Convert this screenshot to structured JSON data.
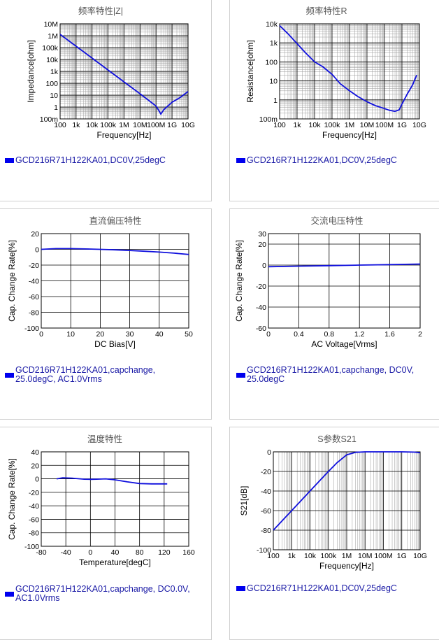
{
  "charts": [
    {
      "type": "line",
      "title": "频率特性|Z|",
      "xscale": "log",
      "yscale": "log",
      "xlim": [
        100,
        10000000000
      ],
      "ylim": [
        0.1,
        10000000
      ],
      "xlabel": "Frequency[Hz]",
      "ylabel": "Impedance[ohm]",
      "xticks": [
        {
          "v": 100,
          "t": "100"
        },
        {
          "v": 1000,
          "t": "1k"
        },
        {
          "v": 10000,
          "t": "10k"
        },
        {
          "v": 100000,
          "t": "100k"
        },
        {
          "v": 1000000,
          "t": "1M"
        },
        {
          "v": 10000000,
          "t": "10M"
        },
        {
          "v": 100000000,
          "t": "100M"
        },
        {
          "v": 1000000000,
          "t": "1G"
        },
        {
          "v": 10000000000,
          "t": "10G"
        }
      ],
      "yticks": [
        {
          "v": 0.1,
          "t": "100m"
        },
        {
          "v": 1,
          "t": "1"
        },
        {
          "v": 10,
          "t": "10"
        },
        {
          "v": 100,
          "t": "100"
        },
        {
          "v": 1000,
          "t": "1k"
        },
        {
          "v": 10000,
          "t": "10k"
        },
        {
          "v": 100000,
          "t": "100k"
        },
        {
          "v": 1000000,
          "t": "1M"
        },
        {
          "v": 10000000,
          "t": "10M"
        }
      ],
      "legend": "GCD216R71H122KA01,DC0V,25degC",
      "series": [
        {
          "x": [
            100,
            1000,
            10000,
            100000,
            1000000,
            10000000,
            30000000,
            100000000,
            150000000,
            200000000,
            300000000,
            1000000000,
            3000000000,
            10000000000
          ],
          "y": [
            1300000,
            130000,
            13000,
            1300,
            130,
            13,
            4.2,
            1.2,
            0.5,
            0.25,
            0.6,
            2.5,
            6,
            20
          ]
        }
      ]
    },
    {
      "type": "line",
      "title": "频率特性R",
      "xscale": "log",
      "yscale": "log",
      "xlim": [
        100,
        10000000000
      ],
      "ylim": [
        0.1,
        10000
      ],
      "xlabel": "Frequency[Hz]",
      "ylabel": "Resistance[ohm]",
      "xticks": [
        {
          "v": 100,
          "t": "100"
        },
        {
          "v": 1000,
          "t": "1k"
        },
        {
          "v": 10000,
          "t": "10k"
        },
        {
          "v": 100000,
          "t": "100k"
        },
        {
          "v": 1000000,
          "t": "1M"
        },
        {
          "v": 10000000,
          "t": "10M"
        },
        {
          "v": 100000000,
          "t": "100M"
        },
        {
          "v": 1000000000,
          "t": "1G"
        },
        {
          "v": 10000000000,
          "t": "10G"
        }
      ],
      "yticks": [
        {
          "v": 0.1,
          "t": "100m"
        },
        {
          "v": 1,
          "t": "1"
        },
        {
          "v": 10,
          "t": "10"
        },
        {
          "v": 100,
          "t": "100"
        },
        {
          "v": 1000,
          "t": "1k"
        },
        {
          "v": 10000,
          "t": "10k"
        }
      ],
      "legend": "GCD216R71H122KA01,DC0V,25degC",
      "series": [
        {
          "x": [
            100,
            300,
            1000,
            3000,
            10000,
            30000,
            100000,
            300000,
            1000000,
            3000000,
            10000000,
            30000000,
            100000000,
            200000000,
            400000000,
            700000000,
            1000000000,
            2000000000,
            4000000000,
            7000000000
          ],
          "y": [
            8000,
            3000,
            900,
            300,
            100,
            55,
            22,
            7,
            3,
            1.5,
            0.8,
            0.5,
            0.35,
            0.28,
            0.25,
            0.3,
            0.6,
            2,
            6,
            20
          ]
        }
      ]
    },
    {
      "type": "line",
      "title": "直流偏压特性",
      "xscale": "linear",
      "yscale": "linear",
      "xlim": [
        0,
        50
      ],
      "ylim": [
        -100,
        20
      ],
      "xlabel": "DC Bias[V]",
      "ylabel": "Cap. Change Rate[%]",
      "xticks": [
        {
          "v": 0,
          "t": "0"
        },
        {
          "v": 10,
          "t": "10"
        },
        {
          "v": 20,
          "t": "20"
        },
        {
          "v": 30,
          "t": "30"
        },
        {
          "v": 40,
          "t": "40"
        },
        {
          "v": 50,
          "t": "50"
        }
      ],
      "yticks": [
        {
          "v": 20,
          "t": "20"
        },
        {
          "v": 0,
          "t": "0"
        },
        {
          "v": -20,
          "t": "-20"
        },
        {
          "v": -40,
          "t": "-40"
        },
        {
          "v": -60,
          "t": "-60"
        },
        {
          "v": -80,
          "t": "-80"
        },
        {
          "v": -100,
          "t": "-100"
        }
      ],
      "legend": "GCD216R71H122KA01,capchange, 25.0degC, AC1.0Vrms",
      "series": [
        {
          "x": [
            0,
            5,
            10,
            15,
            20,
            25,
            30,
            35,
            40,
            45,
            50
          ],
          "y": [
            0,
            1,
            1,
            0.5,
            0,
            -0.6,
            -1.4,
            -2.4,
            -3.5,
            -4.8,
            -6.5
          ]
        }
      ]
    },
    {
      "type": "line",
      "title": "交流电压特性",
      "xscale": "linear",
      "yscale": "linear",
      "xlim": [
        0,
        2
      ],
      "ylim": [
        -60,
        30
      ],
      "xlabel": "AC Voltage[Vrms]",
      "ylabel": "Cap. Change Rate[%]",
      "xticks": [
        {
          "v": 0,
          "t": "0"
        },
        {
          "v": 0.4,
          "t": "0.4"
        },
        {
          "v": 0.8,
          "t": "0.8"
        },
        {
          "v": 1.2,
          "t": "1.2"
        },
        {
          "v": 1.6,
          "t": "1.6"
        },
        {
          "v": 2,
          "t": "2"
        }
      ],
      "yticks": [
        {
          "v": 30,
          "t": "30"
        },
        {
          "v": 20,
          "t": "20"
        },
        {
          "v": 0,
          "t": "0"
        },
        {
          "v": -20,
          "t": "-20"
        },
        {
          "v": -40,
          "t": "-40"
        },
        {
          "v": -60,
          "t": "-60"
        }
      ],
      "legend": "GCD216R71H122KA01,capchange, DC0V, 25.0degC",
      "series": [
        {
          "x": [
            0,
            0.4,
            0.8,
            1.2,
            1.6,
            2
          ],
          "y": [
            -1.5,
            -1,
            -0.5,
            0,
            0.5,
            1
          ]
        }
      ]
    },
    {
      "type": "line",
      "title": "温度特性",
      "xscale": "linear",
      "yscale": "linear",
      "xlim": [
        -80,
        160
      ],
      "ylim": [
        -100,
        40
      ],
      "xlabel": "Temperature[degC]",
      "ylabel": "Cap. Change Rate[%]",
      "xticks": [
        {
          "v": -80,
          "t": "-80"
        },
        {
          "v": -40,
          "t": "-40"
        },
        {
          "v": 0,
          "t": "0"
        },
        {
          "v": 40,
          "t": "40"
        },
        {
          "v": 80,
          "t": "80"
        },
        {
          "v": 120,
          "t": "120"
        },
        {
          "v": 160,
          "t": "160"
        }
      ],
      "yticks": [
        {
          "v": 40,
          "t": "40"
        },
        {
          "v": 20,
          "t": "20"
        },
        {
          "v": 0,
          "t": "0"
        },
        {
          "v": -20,
          "t": "-20"
        },
        {
          "v": -40,
          "t": "-40"
        },
        {
          "v": -60,
          "t": "-60"
        },
        {
          "v": -80,
          "t": "-80"
        },
        {
          "v": -100,
          "t": "-100"
        }
      ],
      "legend": "GCD216R71H122KA01,capchange, DC0.0V, AC1.0Vrms",
      "series": [
        {
          "x": [
            -55,
            -45,
            -30,
            -10,
            0,
            10,
            25,
            40,
            60,
            80,
            100,
            125
          ],
          "y": [
            0,
            1.5,
            1,
            -0.5,
            -0.8,
            -0.5,
            0,
            -1.5,
            -4.5,
            -7,
            -7.5,
            -7.5
          ]
        }
      ]
    },
    {
      "type": "line",
      "title": "S参数S21",
      "xscale": "log",
      "yscale": "linear",
      "xlim": [
        100,
        10000000000
      ],
      "ylim": [
        -100,
        0
      ],
      "xlabel": "Frequency[Hz]",
      "ylabel": "S21[dB]",
      "xticks": [
        {
          "v": 100,
          "t": "100"
        },
        {
          "v": 1000,
          "t": "1k"
        },
        {
          "v": 10000,
          "t": "10k"
        },
        {
          "v": 100000,
          "t": "100k"
        },
        {
          "v": 1000000,
          "t": "1M"
        },
        {
          "v": 10000000,
          "t": "10M"
        },
        {
          "v": 100000000,
          "t": "100M"
        },
        {
          "v": 1000000000,
          "t": "1G"
        },
        {
          "v": 10000000000,
          "t": "10G"
        }
      ],
      "yticks": [
        {
          "v": 0,
          "t": "0"
        },
        {
          "v": -20,
          "t": "-20"
        },
        {
          "v": -40,
          "t": "-40"
        },
        {
          "v": -60,
          "t": "-60"
        },
        {
          "v": -80,
          "t": "-80"
        },
        {
          "v": -100,
          "t": "-100"
        }
      ],
      "legend": "GCD216R71H122KA01,DC0V,25degC",
      "series": [
        {
          "x": [
            100,
            1000,
            10000,
            100000,
            300000,
            1000000,
            3000000,
            10000000,
            100000000,
            1000000000,
            5000000000,
            10000000000
          ],
          "y": [
            -80,
            -60,
            -40,
            -20,
            -11,
            -3,
            -0.5,
            0,
            0,
            0,
            -0.3,
            -1
          ]
        }
      ]
    }
  ],
  "colors": {
    "line": "#1010dd",
    "legend_text": "#1a1aa6",
    "swatch": "#0000ee",
    "grid_major": "#000000",
    "grid_minor": "#9a9a9a"
  }
}
